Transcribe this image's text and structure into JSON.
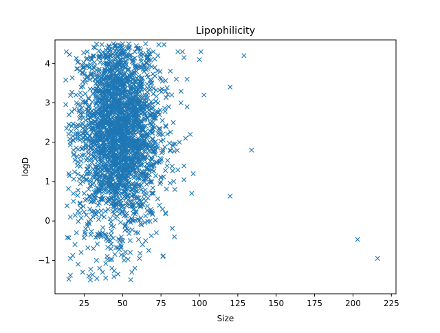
{
  "chart_data": {
    "type": "scatter",
    "title": "Lipophilicity",
    "xlabel": "Size",
    "ylabel": "logD",
    "xlim": [
      6,
      228
    ],
    "ylim": [
      -1.85,
      4.6
    ],
    "xticks": [
      25,
      50,
      75,
      100,
      125,
      150,
      175,
      200,
      225
    ],
    "yticks": [
      -1,
      0,
      1,
      2,
      3,
      4
    ],
    "marker": "x",
    "color": "#1f77b4",
    "grid": false,
    "cloud": {
      "description_points_generated": false,
      "bulk_x_range": [
        13,
        98
      ],
      "bulk_y_range": [
        -1.5,
        4.5
      ]
    },
    "points": [
      {
        "x": 13,
        "y": 3.58
      },
      {
        "x": 14,
        "y": -0.42
      },
      {
        "x": 15,
        "y": -0.43
      },
      {
        "x": 15,
        "y": -1.48
      },
      {
        "x": 16,
        "y": -1.38
      },
      {
        "x": 16,
        "y": -0.95
      },
      {
        "x": 15,
        "y": 2.45
      },
      {
        "x": 15,
        "y": 1.2
      },
      {
        "x": 16,
        "y": 0.1
      },
      {
        "x": 17,
        "y": 3.27
      },
      {
        "x": 18,
        "y": 0.5
      },
      {
        "x": 18,
        "y": 1.8
      },
      {
        "x": 19,
        "y": 2.1
      },
      {
        "x": 19,
        "y": -0.6
      },
      {
        "x": 20,
        "y": 3.0
      },
      {
        "x": 20,
        "y": -0.3
      },
      {
        "x": 21,
        "y": 1.5
      },
      {
        "x": 21,
        "y": -1.1
      },
      {
        "x": 22,
        "y": 2.6
      },
      {
        "x": 22,
        "y": 0.2
      },
      {
        "x": 23,
        "y": 3.4
      },
      {
        "x": 23,
        "y": -0.8
      },
      {
        "x": 24,
        "y": 1.0
      },
      {
        "x": 24,
        "y": -1.3
      },
      {
        "x": 25,
        "y": 3.9
      },
      {
        "x": 25,
        "y": 0.7
      },
      {
        "x": 26,
        "y": 2.3
      },
      {
        "x": 26,
        "y": -0.2
      },
      {
        "x": 27,
        "y": 4.3
      },
      {
        "x": 27,
        "y": 1.6
      },
      {
        "x": 28,
        "y": -1.4
      },
      {
        "x": 28,
        "y": 3.1
      },
      {
        "x": 29,
        "y": 0.9
      },
      {
        "x": 29,
        "y": -1.5
      },
      {
        "x": 30,
        "y": 2.8
      },
      {
        "x": 30,
        "y": 4.1
      },
      {
        "x": 31,
        "y": -0.7
      },
      {
        "x": 31,
        "y": 1.3
      },
      {
        "x": 32,
        "y": 3.6
      },
      {
        "x": 32,
        "y": 4.4
      },
      {
        "x": 33,
        "y": -1.0
      },
      {
        "x": 33,
        "y": 2.0
      },
      {
        "x": 34,
        "y": 0.4
      },
      {
        "x": 34,
        "y": 3.3
      },
      {
        "x": 35,
        "y": -1.2
      },
      {
        "x": 35,
        "y": 4.2
      },
      {
        "x": 36,
        "y": 1.8
      },
      {
        "x": 36,
        "y": -0.4
      },
      {
        "x": 37,
        "y": 2.7
      },
      {
        "x": 37,
        "y": -1.3
      },
      {
        "x": 38,
        "y": 3.8
      },
      {
        "x": 38,
        "y": 0.1
      },
      {
        "x": 39,
        "y": 4.0
      },
      {
        "x": 39,
        "y": -1.45
      },
      {
        "x": 40,
        "y": 2.2
      },
      {
        "x": 40,
        "y": -0.9
      },
      {
        "x": 41,
        "y": 3.5
      },
      {
        "x": 41,
        "y": 1.1
      },
      {
        "x": 42,
        "y": 4.35
      },
      {
        "x": 42,
        "y": -0.5
      },
      {
        "x": 43,
        "y": 2.9
      },
      {
        "x": 43,
        "y": -1.2
      },
      {
        "x": 44,
        "y": 0.6
      },
      {
        "x": 44,
        "y": 4.5
      },
      {
        "x": 45,
        "y": 3.2
      },
      {
        "x": 45,
        "y": -0.85
      },
      {
        "x": 46,
        "y": 1.7
      },
      {
        "x": 46,
        "y": 4.45
      },
      {
        "x": 47,
        "y": 2.4
      },
      {
        "x": 47,
        "y": -1.35
      },
      {
        "x": 48,
        "y": 3.7
      },
      {
        "x": 48,
        "y": 0.3
      },
      {
        "x": 49,
        "y": 4.3
      },
      {
        "x": 49,
        "y": -0.65
      },
      {
        "x": 50,
        "y": 1.9
      },
      {
        "x": 50,
        "y": 4.5
      },
      {
        "x": 51,
        "y": 2.6
      },
      {
        "x": 51,
        "y": -1.0
      },
      {
        "x": 52,
        "y": 3.9
      },
      {
        "x": 52,
        "y": 0.8
      },
      {
        "x": 53,
        "y": 4.4
      },
      {
        "x": 53,
        "y": -0.2
      },
      {
        "x": 54,
        "y": 1.4
      },
      {
        "x": 54,
        "y": 4.5
      },
      {
        "x": 55,
        "y": 3.0
      },
      {
        "x": 55,
        "y": -0.8
      },
      {
        "x": 56,
        "y": 2.1
      },
      {
        "x": 56,
        "y": -1.3
      },
      {
        "x": 57,
        "y": 3.6
      },
      {
        "x": 57,
        "y": 0.0
      },
      {
        "x": 58,
        "y": 4.3
      },
      {
        "x": 58,
        "y": -1.2
      },
      {
        "x": 59,
        "y": 1.2
      },
      {
        "x": 59,
        "y": 4.45
      },
      {
        "x": 60,
        "y": 2.8
      },
      {
        "x": 60,
        "y": -0.3
      },
      {
        "x": 61,
        "y": 3.4
      },
      {
        "x": 61,
        "y": -0.95
      },
      {
        "x": 62,
        "y": 0.5
      },
      {
        "x": 62,
        "y": 4.2
      },
      {
        "x": 63,
        "y": 2.3
      },
      {
        "x": 63,
        "y": -0.6
      },
      {
        "x": 64,
        "y": 3.8
      },
      {
        "x": 64,
        "y": 1.0
      },
      {
        "x": 65,
        "y": 4.5
      },
      {
        "x": 65,
        "y": -0.5
      },
      {
        "x": 66,
        "y": 1.6
      },
      {
        "x": 66,
        "y": 3.2
      },
      {
        "x": 67,
        "y": -0.75
      },
      {
        "x": 67,
        "y": 4.1
      },
      {
        "x": 68,
        "y": 2.5
      },
      {
        "x": 68,
        "y": 0.2
      },
      {
        "x": 69,
        "y": 3.5
      },
      {
        "x": 69,
        "y": 1.3
      },
      {
        "x": 70,
        "y": 4.3
      },
      {
        "x": 70,
        "y": 0.7
      },
      {
        "x": 71,
        "y": 2.0
      },
      {
        "x": 71,
        "y": 3.9
      },
      {
        "x": 72,
        "y": -0.3
      },
      {
        "x": 72,
        "y": 1.5
      },
      {
        "x": 73,
        "y": 3.0
      },
      {
        "x": 73,
        "y": 4.2
      },
      {
        "x": 74,
        "y": 0.4
      },
      {
        "x": 74,
        "y": 2.7
      },
      {
        "x": 75,
        "y": 3.6
      },
      {
        "x": 75,
        "y": 1.1
      },
      {
        "x": 76,
        "y": 0.3
      },
      {
        "x": 76,
        "y": 2.2
      },
      {
        "x": 77,
        "y": 4.48
      },
      {
        "x": 78,
        "y": 3.3
      },
      {
        "x": 79,
        "y": 1.4
      },
      {
        "x": 80,
        "y": 2.9
      },
      {
        "x": 81,
        "y": 1.8
      },
      {
        "x": 82,
        "y": 3.2
      },
      {
        "x": 83,
        "y": 2.5
      },
      {
        "x": 84,
        "y": 0.8
      },
      {
        "x": 85,
        "y": 3.6
      },
      {
        "x": 86,
        "y": 4.3
      },
      {
        "x": 86,
        "y": 1.3
      },
      {
        "x": 87,
        "y": 2.0
      },
      {
        "x": 88,
        "y": 3.0
      },
      {
        "x": 89,
        "y": 4.3
      },
      {
        "x": 90,
        "y": 4.15
      },
      {
        "x": 90,
        "y": 1.4
      },
      {
        "x": 91,
        "y": 2.1
      },
      {
        "x": 92,
        "y": 3.6
      },
      {
        "x": 92,
        "y": 2.9
      },
      {
        "x": 94,
        "y": 2.2
      },
      {
        "x": 95,
        "y": 0.7
      },
      {
        "x": 96,
        "y": 1.2
      },
      {
        "x": 100,
        "y": 4.1
      },
      {
        "x": 101,
        "y": 4.3
      },
      {
        "x": 103,
        "y": 3.2
      },
      {
        "x": 120,
        "y": 3.4
      },
      {
        "x": 120,
        "y": 0.63
      },
      {
        "x": 129,
        "y": 4.2
      },
      {
        "x": 134,
        "y": 1.8
      },
      {
        "x": 203,
        "y": -0.47
      },
      {
        "x": 216,
        "y": -0.95
      }
    ]
  }
}
